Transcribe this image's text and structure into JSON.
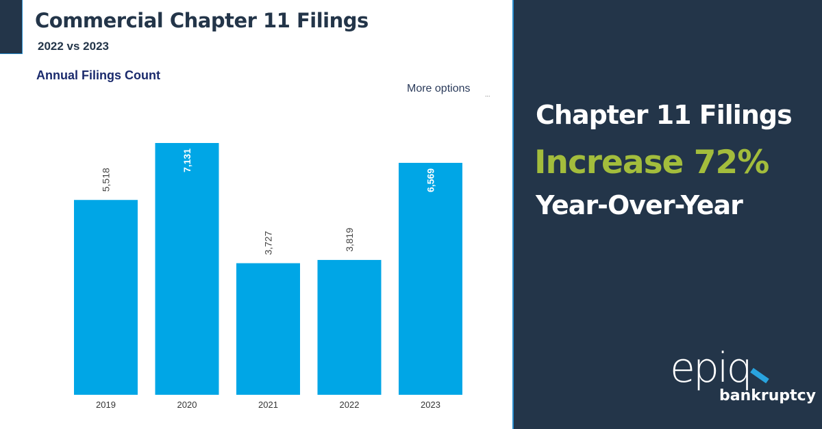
{
  "header": {
    "title": "Commercial Chapter 11 Filings",
    "subtitle": "2022 vs 2023",
    "more_options": "More options",
    "dots": "..."
  },
  "chart_data": {
    "type": "bar",
    "title": "Annual Filings Count",
    "categories": [
      "2019",
      "2020",
      "2021",
      "2022",
      "2023"
    ],
    "values": [
      5518,
      7131,
      3727,
      3819,
      6569
    ],
    "data_labels": [
      "5,518",
      "7,131",
      "3,727",
      "3,819",
      "6,569"
    ],
    "xlabel": "",
    "ylabel": "",
    "ylim": [
      0,
      7131
    ],
    "grid": false,
    "legend": "none",
    "bar_color": "#00a6e6"
  },
  "panel": {
    "line1": "Chapter 11 Filings",
    "line2": "Increase 72%",
    "line3": "Year-Over-Year",
    "accent": "#a3bd3c",
    "background": "#233549"
  },
  "logo": {
    "name": "epiq",
    "sub": "bankruptcy"
  }
}
